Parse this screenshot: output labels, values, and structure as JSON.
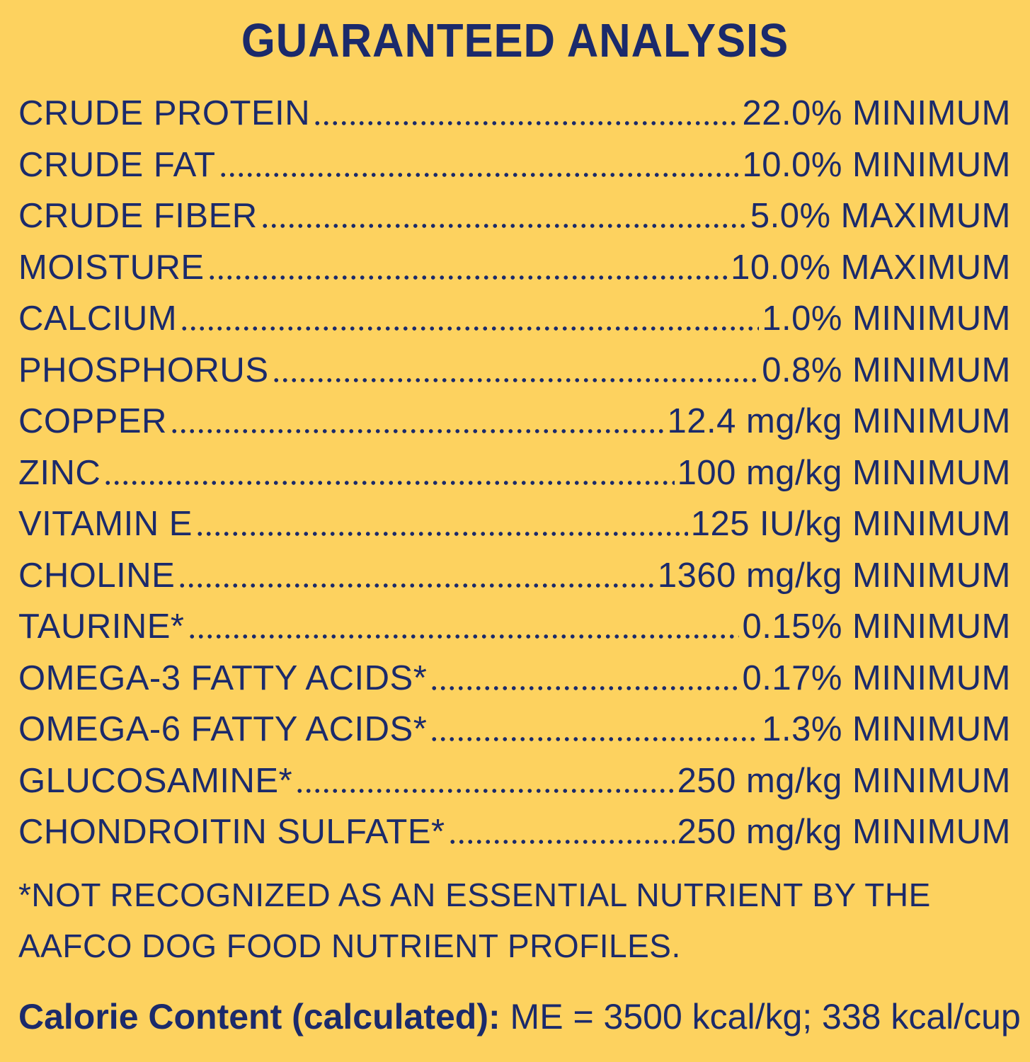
{
  "title": "GUARANTEED ANALYSIS",
  "nutrients": [
    {
      "label": "CRUDE PROTEIN",
      "value": "22.0% MINIMUM"
    },
    {
      "label": "CRUDE FAT",
      "value": "10.0% MINIMUM"
    },
    {
      "label": "CRUDE FIBER",
      "value": "5.0% MAXIMUM"
    },
    {
      "label": "MOISTURE",
      "value": "10.0% MAXIMUM"
    },
    {
      "label": "CALCIUM",
      "value": "1.0% MINIMUM"
    },
    {
      "label": "PHOSPHORUS",
      "value": "0.8% MINIMUM"
    },
    {
      "label": "COPPER",
      "value": "12.4 mg/kg MINIMUM"
    },
    {
      "label": "ZINC",
      "value": "100 mg/kg MINIMUM"
    },
    {
      "label": "VITAMIN E",
      "value": "125 IU/kg MINIMUM"
    },
    {
      "label": "CHOLINE",
      "value": "1360 mg/kg MINIMUM"
    },
    {
      "label": "TAURINE*",
      "value": "0.15% MINIMUM"
    },
    {
      "label": "OMEGA-3 FATTY ACIDS*",
      "value": "0.17% MINIMUM"
    },
    {
      "label": "OMEGA-6 FATTY ACIDS*",
      "value": "1.3% MINIMUM"
    },
    {
      "label": "GLUCOSAMINE*",
      "value": "250 mg/kg MINIMUM"
    },
    {
      "label": "CHONDROITIN SULFATE*",
      "value": "250 mg/kg MINIMUM"
    }
  ],
  "footnote": "*NOT RECOGNIZED AS AN ESSENTIAL NUTRIENT BY THE AAFCO DOG FOOD NUTRIENT PROFILES.",
  "calorie": {
    "label": "Calorie Content (calculated):",
    "value": "ME = 3500 kcal/kg; 338 kcal/cup"
  },
  "colors": {
    "background": "#fdd25f",
    "text": "#1b2a6b"
  }
}
